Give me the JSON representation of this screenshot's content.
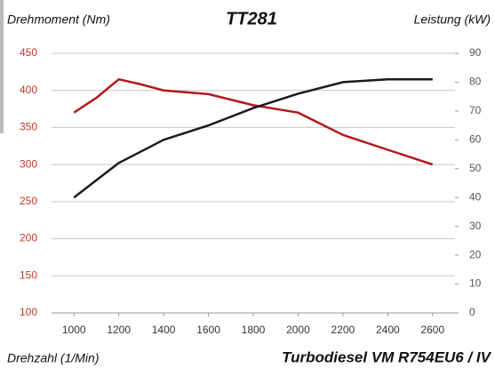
{
  "chart_data": {
    "type": "line",
    "title": "TT281",
    "y_label": "Drehmoment (Nm)",
    "y2_label": "Leistung (kW)",
    "x_label": "Drehzahl (1/Min)",
    "annotation": "Turbodiesel VM R754EU6 / IV",
    "x": [
      1000,
      1100,
      1200,
      1300,
      1400,
      1600,
      1800,
      2000,
      2200,
      2400,
      2600
    ],
    "xlim": [
      900,
      2700
    ],
    "xticks": [
      1000,
      1200,
      1400,
      1600,
      1800,
      2000,
      2200,
      2400,
      2600
    ],
    "ylim": [
      100,
      450
    ],
    "yticks": [
      100,
      150,
      200,
      250,
      300,
      350,
      400,
      450
    ],
    "y2lim": [
      0,
      90
    ],
    "y2ticks": [
      0,
      10,
      20,
      30,
      40,
      50,
      60,
      70,
      80,
      90
    ],
    "grid": true,
    "ytick_color": "#c0392b",
    "series": [
      {
        "name": "Drehmoment",
        "color": "#b3181e",
        "values": [
          370,
          390,
          415,
          408,
          400,
          395,
          380,
          370,
          340,
          320,
          300
        ]
      },
      {
        "name": "Leistung",
        "color": "#1a1a1a",
        "axis": "y2",
        "values": [
          40,
          46,
          52,
          56,
          60,
          65,
          71,
          76,
          80,
          81,
          81
        ]
      }
    ]
  }
}
